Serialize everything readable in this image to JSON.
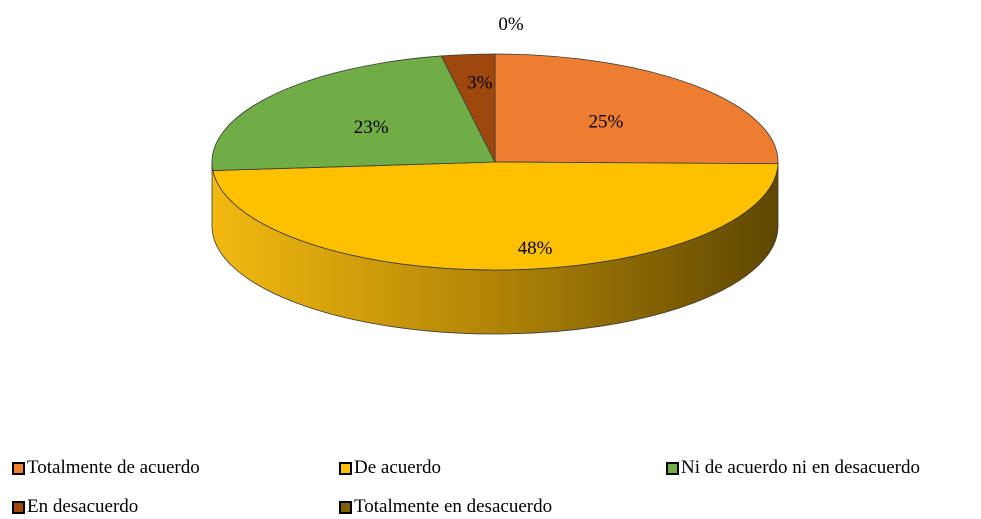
{
  "chart_data": {
    "type": "pie",
    "style": "3d",
    "categories": [
      "Totalmente de acuerdo",
      "De acuerdo",
      "Ni de acuerdo ni en desacuerdo",
      "En desacuerdo",
      "Totalmente en desacuerdo"
    ],
    "values": [
      25,
      48,
      23,
      3,
      0
    ],
    "data_labels": [
      "25%",
      "48%",
      "23%",
      "3%",
      "0%"
    ],
    "colors": [
      "#ED7D31",
      "#FFC000",
      "#70AD47",
      "#9E480E",
      "#7F6000"
    ],
    "legend_position": "bottom"
  }
}
